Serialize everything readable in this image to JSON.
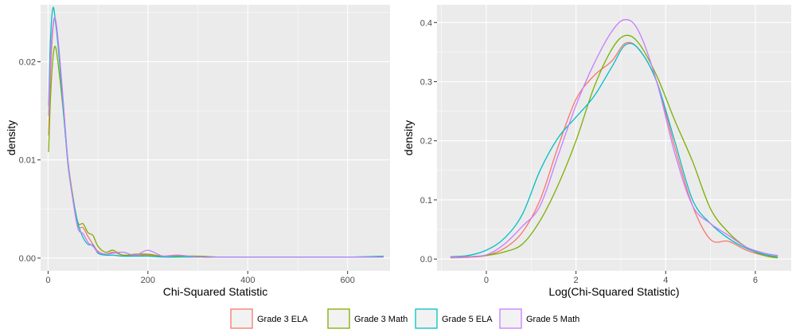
{
  "colors": {
    "Grade 3 ELA": "#F8766D",
    "Grade 3 Math": "#7CAE00",
    "Grade 5 ELA": "#00BFC4",
    "Grade 5 Math": "#C77CFF"
  },
  "legend": {
    "placement": "bottom",
    "entries": [
      "Grade 3 ELA",
      "Grade 3 Math",
      "Grade 5 ELA",
      "Grade 5 Math"
    ]
  },
  "chart_data": [
    {
      "type": "line",
      "xlabel": "Chi-Squared Statistic",
      "ylabel": "density",
      "xlim": [
        -15,
        685
      ],
      "ylim": [
        -0.0013,
        0.0258
      ],
      "xticks": [
        0,
        200,
        400,
        600
      ],
      "xtick_labels": [
        "0",
        "200",
        "400",
        "600"
      ],
      "yticks": [
        0,
        0.01,
        0.02
      ],
      "ytick_labels": [
        "0.00",
        "0.01",
        "0.02"
      ],
      "grid": true,
      "series": [
        {
          "name": "Grade 3 ELA",
          "x": [
            1,
            5,
            10,
            15,
            22,
            30,
            40,
            50,
            60,
            70,
            80,
            90,
            100,
            115,
            130,
            150,
            175,
            200,
            230,
            260,
            300,
            350,
            400,
            500,
            600,
            672
          ],
          "y": [
            0.0125,
            0.019,
            0.0235,
            0.0242,
            0.021,
            0.016,
            0.0095,
            0.006,
            0.0033,
            0.0031,
            0.0022,
            0.0014,
            0.0007,
            0.0004,
            0.0006,
            0.0003,
            0.0003,
            0.0003,
            0.0002,
            0.0003,
            0.0001,
            0.0001,
            0.0001,
            0.0001,
            0.0001,
            0.0001
          ]
        },
        {
          "name": "Grade 3 Math",
          "x": [
            1,
            5,
            10,
            15,
            22,
            30,
            40,
            50,
            60,
            70,
            80,
            90,
            100,
            115,
            130,
            150,
            175,
            200,
            230,
            260,
            300,
            350,
            400,
            500,
            600,
            672
          ],
          "y": [
            0.0108,
            0.0165,
            0.0205,
            0.0215,
            0.019,
            0.0152,
            0.0098,
            0.0062,
            0.0036,
            0.0035,
            0.0026,
            0.0023,
            0.0012,
            0.0006,
            0.0008,
            0.0003,
            0.0004,
            0.0004,
            0.0002,
            0.0002,
            0.0002,
            0.0001,
            0.0001,
            0.0001,
            0.0001,
            0.0001
          ]
        },
        {
          "name": "Grade 5 ELA",
          "x": [
            1,
            5,
            10,
            15,
            22,
            30,
            40,
            50,
            60,
            70,
            80,
            90,
            100,
            115,
            130,
            150,
            175,
            200,
            230,
            260,
            300,
            350,
            400,
            500,
            600,
            672
          ],
          "y": [
            0.0155,
            0.0225,
            0.0255,
            0.024,
            0.0205,
            0.0155,
            0.0095,
            0.006,
            0.0035,
            0.0021,
            0.0014,
            0.0013,
            0.0005,
            0.0003,
            0.0003,
            0.0002,
            0.0002,
            0.0002,
            0.0001,
            0.0001,
            0.0001,
            0.0001,
            0.0001,
            0.0001,
            0.0001,
            0.0002
          ]
        },
        {
          "name": "Grade 5 Math",
          "x": [
            1,
            5,
            10,
            15,
            22,
            30,
            40,
            50,
            60,
            70,
            80,
            90,
            100,
            115,
            130,
            150,
            175,
            200,
            230,
            260,
            300,
            350,
            400,
            500,
            600,
            672
          ],
          "y": [
            0.0145,
            0.0205,
            0.0238,
            0.0243,
            0.0212,
            0.0162,
            0.0098,
            0.0058,
            0.003,
            0.0025,
            0.0016,
            0.0012,
            0.0006,
            0.0004,
            0.0005,
            0.0006,
            0.0003,
            0.0008,
            0.0002,
            0.0003,
            0.0001,
            0.0001,
            0.0001,
            0.0001,
            0.0001,
            0.0001
          ]
        }
      ]
    },
    {
      "type": "line",
      "xlabel": "Log(Chi-Squared Statistic)",
      "ylabel": "density",
      "xlim": [
        -1.1,
        6.8
      ],
      "ylim": [
        -0.02,
        0.43
      ],
      "xticks": [
        0,
        2,
        4,
        6
      ],
      "xtick_labels": [
        "0",
        "2",
        "4",
        "6"
      ],
      "yticks": [
        0,
        0.1,
        0.2,
        0.3,
        0.4
      ],
      "ytick_labels": [
        "0.0",
        "0.1",
        "0.2",
        "0.3",
        "0.4"
      ],
      "grid": true,
      "series": [
        {
          "name": "Grade 3 ELA",
          "x": [
            -0.8,
            -0.4,
            0,
            0.4,
            0.8,
            1.2,
            1.6,
            2.0,
            2.4,
            2.8,
            3.1,
            3.4,
            3.8,
            4.2,
            4.6,
            5.0,
            5.4,
            5.8,
            6.2,
            6.5
          ],
          "y": [
            0.002,
            0.003,
            0.006,
            0.018,
            0.045,
            0.1,
            0.19,
            0.27,
            0.31,
            0.335,
            0.365,
            0.355,
            0.3,
            0.19,
            0.09,
            0.033,
            0.03,
            0.015,
            0.006,
            0.004
          ]
        },
        {
          "name": "Grade 3 Math",
          "x": [
            -0.8,
            -0.4,
            0,
            0.4,
            0.8,
            1.2,
            1.6,
            2.0,
            2.4,
            2.8,
            3.1,
            3.4,
            3.8,
            4.2,
            4.6,
            5.0,
            5.4,
            5.8,
            6.2,
            6.5
          ],
          "y": [
            0.003,
            0.004,
            0.006,
            0.012,
            0.025,
            0.065,
            0.125,
            0.2,
            0.29,
            0.355,
            0.378,
            0.365,
            0.31,
            0.235,
            0.165,
            0.085,
            0.045,
            0.02,
            0.006,
            0.002
          ]
        },
        {
          "name": "Grade 5 ELA",
          "x": [
            -0.8,
            -0.4,
            0,
            0.4,
            0.8,
            1.2,
            1.6,
            2.0,
            2.4,
            2.8,
            3.1,
            3.4,
            3.8,
            4.2,
            4.6,
            5.0,
            5.4,
            5.8,
            6.2,
            6.5
          ],
          "y": [
            0.004,
            0.006,
            0.015,
            0.035,
            0.075,
            0.15,
            0.205,
            0.24,
            0.275,
            0.325,
            0.362,
            0.355,
            0.3,
            0.2,
            0.1,
            0.06,
            0.035,
            0.018,
            0.008,
            0.004
          ]
        },
        {
          "name": "Grade 5 Math",
          "x": [
            -0.8,
            -0.4,
            0,
            0.4,
            0.8,
            1.2,
            1.6,
            2.0,
            2.4,
            2.8,
            3.1,
            3.4,
            3.8,
            4.2,
            4.6,
            5.0,
            5.4,
            5.8,
            6.2,
            6.5
          ],
          "y": [
            0.003,
            0.004,
            0.007,
            0.025,
            0.055,
            0.09,
            0.175,
            0.26,
            0.33,
            0.385,
            0.405,
            0.385,
            0.3,
            0.18,
            0.09,
            0.06,
            0.04,
            0.02,
            0.01,
            0.006
          ]
        }
      ]
    }
  ]
}
